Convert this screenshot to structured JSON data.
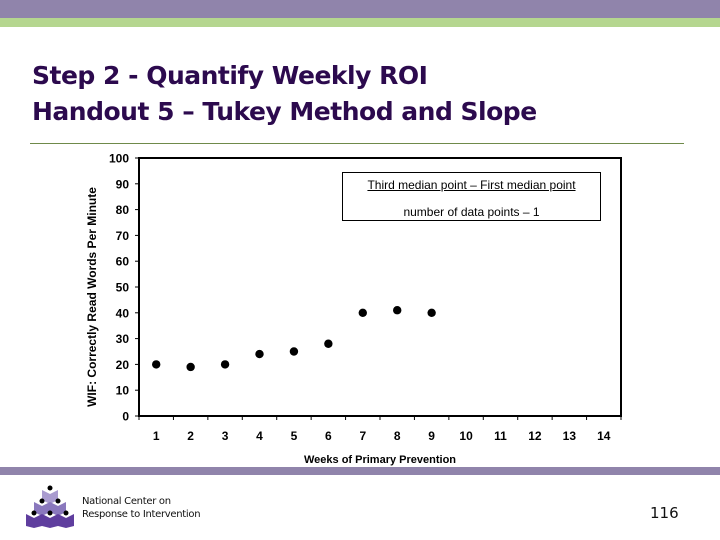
{
  "slide": {
    "title_line1": "Step 2 - Quantify Weekly ROI",
    "title_line2": "Handout 5 – Tukey Method and Slope",
    "page_number": "116",
    "colors": {
      "purple_band": "#9084ab",
      "green_band": "#b5d68f",
      "title": "#2c0a4e"
    }
  },
  "footer": {
    "org_line1": "National Center on",
    "org_line2": "Response to Intervention",
    "logo_icon": "rti-pyramid-logo-icon"
  },
  "formula": {
    "numerator": "Third median point – First median point",
    "denominator": "number of data points – 1"
  },
  "chart_data": {
    "type": "scatter",
    "title": "",
    "xlabel": "Weeks of Primary Prevention",
    "ylabel": "WIF: Correctly Read Words Per Minute",
    "x_ticks": [
      "1",
      "2",
      "3",
      "4",
      "5",
      "6",
      "7",
      "8",
      "9",
      "10",
      "11",
      "12",
      "13",
      "14"
    ],
    "y_ticks": [
      "0",
      "10",
      "20",
      "30",
      "40",
      "50",
      "60",
      "70",
      "80",
      "90",
      "100"
    ],
    "xlim": [
      0.5,
      14.5
    ],
    "ylim": [
      0,
      100
    ],
    "grid": false,
    "legend": null,
    "series": [
      {
        "name": "WIF scores",
        "x": [
          1,
          2,
          3,
          4,
          5,
          6,
          7,
          8,
          9
        ],
        "values": [
          20,
          19,
          20,
          24,
          25,
          28,
          40,
          41,
          40
        ]
      }
    ],
    "annotations": [
      "Third median point – First median point",
      "number of data points – 1"
    ]
  }
}
